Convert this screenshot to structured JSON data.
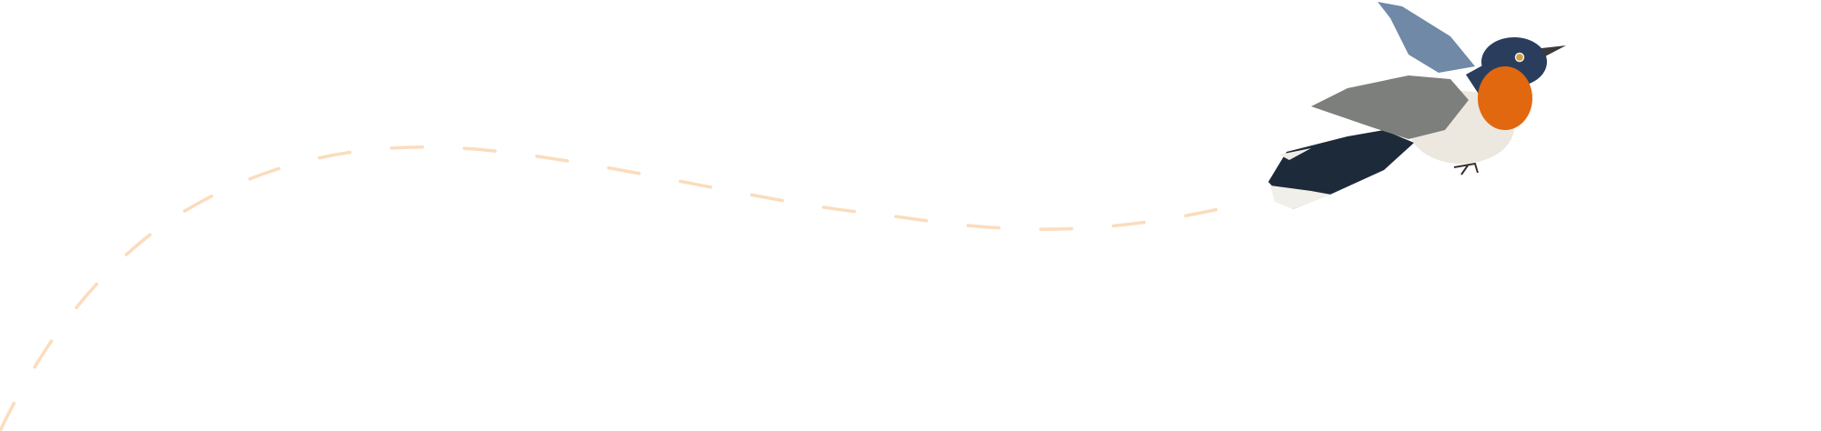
{
  "colors": {
    "background": "#ffffff",
    "flight_path": "#fbdcbd",
    "bird_tail": "#1d2a3a",
    "bird_head": "#2a3d5c",
    "bird_throat": "#e2680f",
    "bird_belly": "#ece8df",
    "bird_wing": "#7d7f7c",
    "bird_wing_upper": "#6f89a6"
  },
  "icons": [
    "bird-illustration",
    "dashed-flight-path"
  ]
}
